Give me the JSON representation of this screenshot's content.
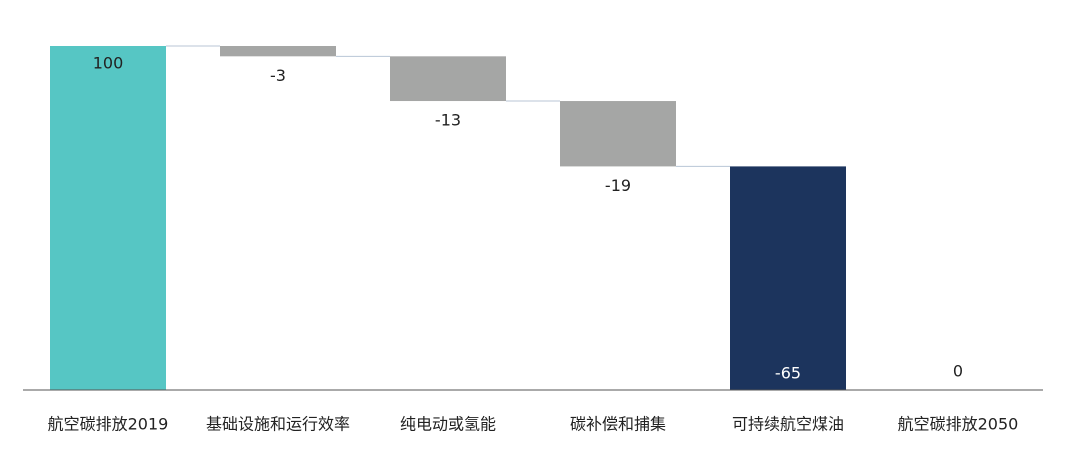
{
  "chart_data": {
    "type": "waterfall",
    "categories": [
      "航空碳排放2019",
      "基础设施和运行效率",
      "纯电动或氢能",
      "碳补偿和捕集",
      "可持续航空煤油",
      "航空碳排放2050"
    ],
    "values": [
      100,
      -3,
      -13,
      -19,
      -65,
      0
    ],
    "colors": [
      "#56c6c4",
      "#a5a6a5",
      "#a5a6a5",
      "#a5a6a5",
      "#1c345d",
      "#1c345d"
    ],
    "ylim": [
      0,
      100
    ]
  }
}
